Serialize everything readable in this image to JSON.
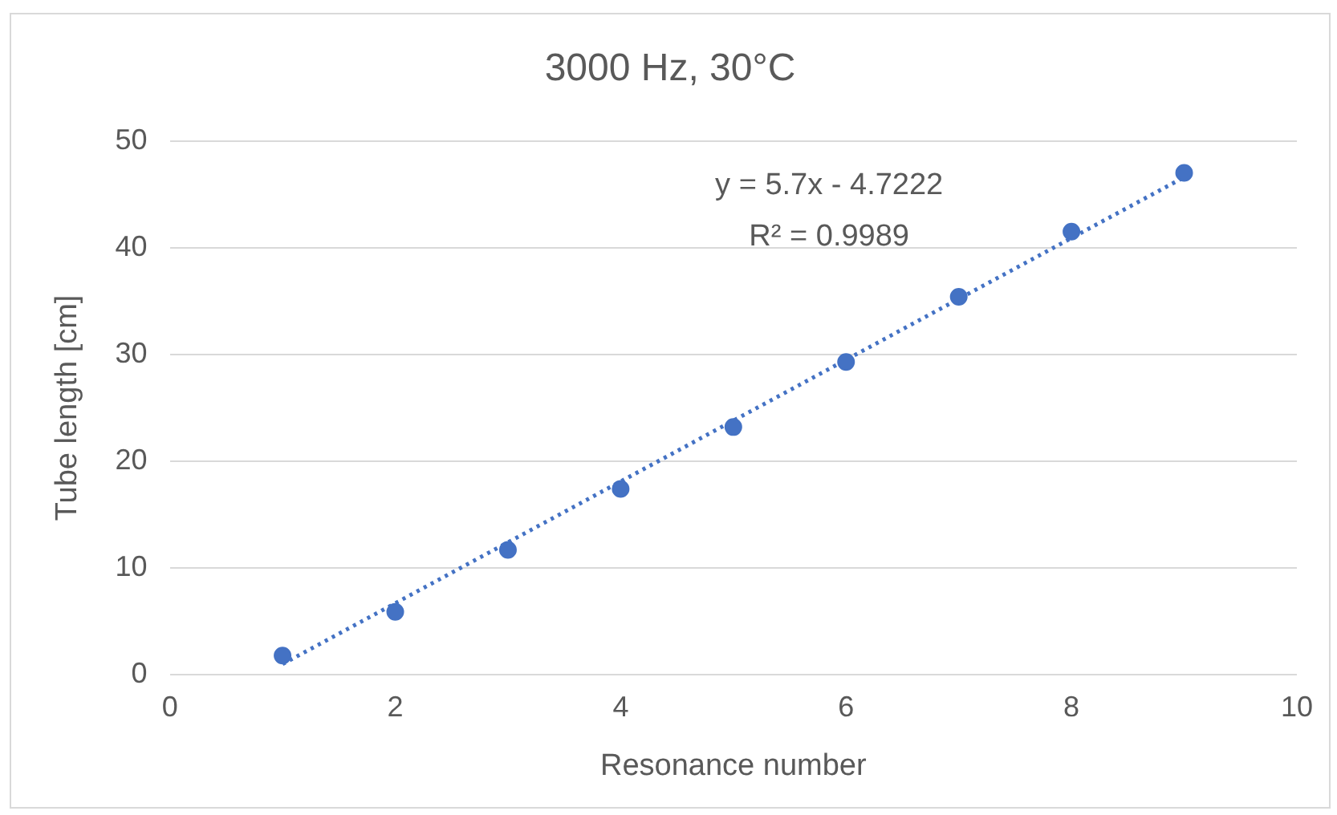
{
  "chart_data": {
    "type": "scatter",
    "title": "3000 Hz, 30°C",
    "xlabel": "Resonance number",
    "ylabel": "Tube length [cm]",
    "xlim": [
      0,
      10
    ],
    "xticks": [
      0,
      2,
      4,
      6,
      8,
      10
    ],
    "ylim": [
      0,
      50
    ],
    "yticks": [
      0,
      10,
      20,
      30,
      40,
      50
    ],
    "grid": "y",
    "legend": false,
    "series": [
      {
        "color": "#4472c4",
        "marker": "circle",
        "x": [
          1,
          2,
          3,
          4,
          5,
          6,
          7,
          8,
          9
        ],
        "values": [
          1.8,
          5.9,
          11.7,
          17.4,
          23.2,
          29.3,
          35.4,
          41.5,
          47.0
        ]
      },
      {
        "type": "line",
        "color": "#4472c4",
        "marker": "none",
        "line_style": "dotted",
        "x": [
          1,
          9
        ],
        "values": [
          1.0,
          46.6
        ]
      }
    ],
    "annotations": [
      "y = 5.7x - 4.7222",
      "R² = 0.9989"
    ]
  }
}
